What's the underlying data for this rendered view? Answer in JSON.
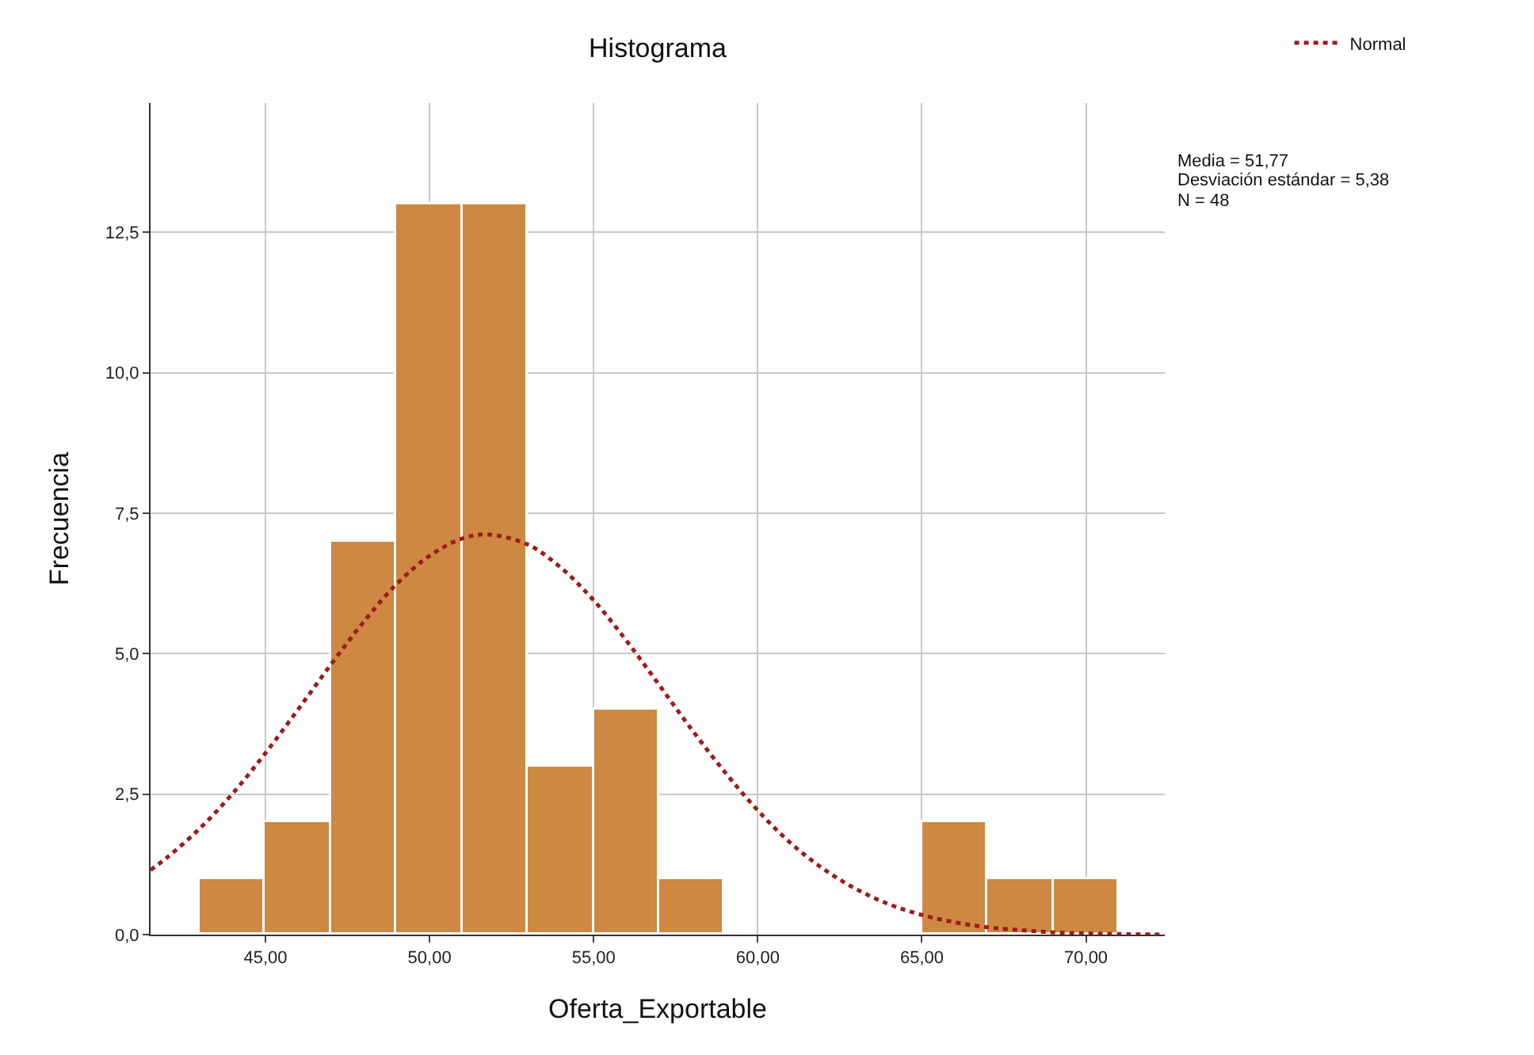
{
  "chart_data": {
    "type": "histogram",
    "title": "Histograma",
    "xlabel": "Oferta_Exportable",
    "ylabel": "Frecuencia",
    "bins": [
      43,
      45,
      47,
      49,
      51,
      53,
      55,
      57,
      59,
      61,
      63,
      65,
      67,
      69,
      71
    ],
    "values": [
      1,
      2,
      7,
      13,
      13,
      3,
      4,
      1,
      0,
      0,
      0,
      2,
      1,
      1
    ],
    "color": "#cd8842",
    "series": [
      {
        "type": "line",
        "name": "Normal",
        "color": "#9e1b1b",
        "line_style": "dotted",
        "x": [
          41.5,
          42,
          43,
          44,
          45,
          46,
          47,
          48,
          49,
          50,
          51,
          51.77,
          53,
          54,
          55,
          56,
          57,
          58,
          59,
          60,
          61,
          62,
          63,
          64,
          65,
          66,
          67,
          68,
          69,
          70,
          71,
          72.4
        ],
        "values": [
          1.15,
          1.37,
          1.89,
          2.51,
          3.23,
          4.01,
          4.81,
          5.57,
          6.24,
          6.74,
          7.05,
          7.12,
          6.94,
          6.53,
          5.95,
          5.23,
          4.44,
          3.64,
          2.89,
          2.21,
          1.63,
          1.17,
          0.81,
          0.54,
          0.35,
          0.22,
          0.13,
          0.08,
          0.04,
          0.02,
          0.01,
          0.0
        ]
      }
    ],
    "xlim": [
      41.5,
      72.4
    ],
    "xticks": [
      {
        "value": 45,
        "label": "45,00"
      },
      {
        "value": 50,
        "label": "50,00"
      },
      {
        "value": 55,
        "label": "55,00"
      },
      {
        "value": 60,
        "label": "60,00"
      },
      {
        "value": 65,
        "label": "65,00"
      },
      {
        "value": 70,
        "label": "70,00"
      }
    ],
    "ylim": [
      0,
      14.8
    ],
    "yticks": [
      {
        "value": 0,
        "label": "0,0"
      },
      {
        "value": 2.5,
        "label": "2,5"
      },
      {
        "value": 5,
        "label": "5,0"
      },
      {
        "value": 7.5,
        "label": "7,5"
      },
      {
        "value": 10,
        "label": "10,0"
      },
      {
        "value": 12.5,
        "label": "12,5"
      }
    ],
    "grid": true,
    "legend": "top right",
    "annotations": [
      "Media = 51,77",
      "Desviación estándar = 5,38",
      "N = 48"
    ]
  }
}
